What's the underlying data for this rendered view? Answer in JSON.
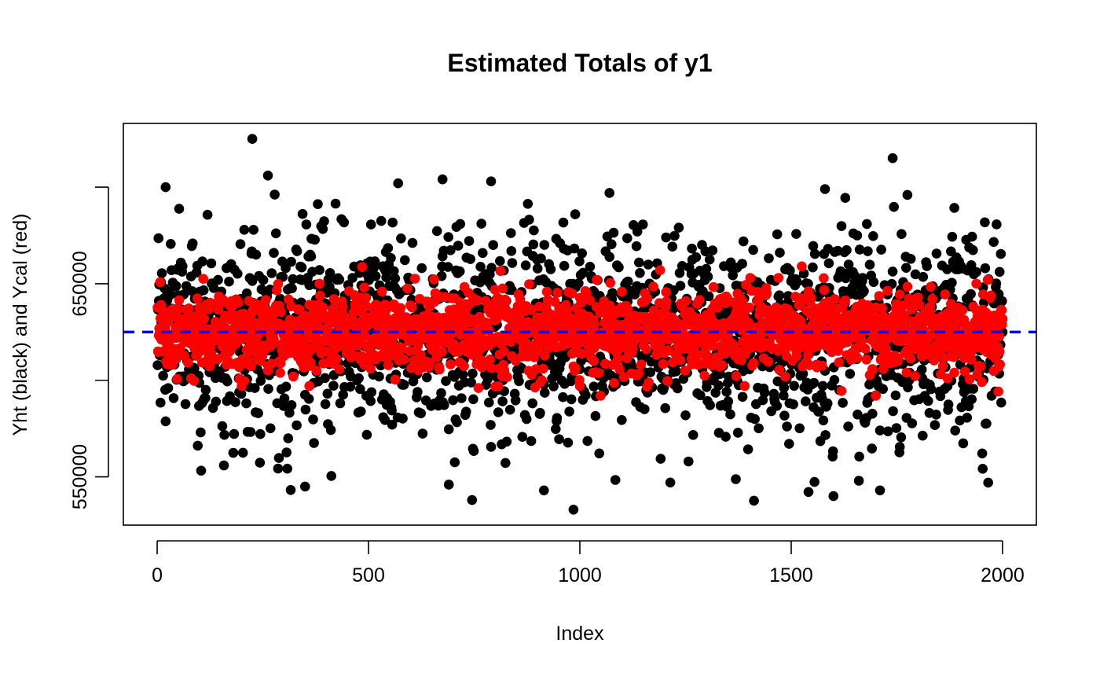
{
  "chart_data": {
    "type": "scatter",
    "title": "Estimated Totals of y1",
    "xlabel": "Index",
    "ylabel": "Yht (black) and Ycal (red)",
    "xlim": [
      -80,
      2080
    ],
    "ylim": [
      525000,
      733000
    ],
    "x_ticks": [
      0,
      500,
      1000,
      1500,
      2000
    ],
    "x_tick_labels": [
      "0",
      "500",
      "1000",
      "1500",
      "2000"
    ],
    "y_ticks": [
      550000,
      600000,
      650000,
      700000
    ],
    "y_tick_labels": [
      "550000",
      "",
      "650000",
      ""
    ],
    "n_points": 2000,
    "reference_line": {
      "y": 625000,
      "color": "#0000ff",
      "style": "dashed"
    },
    "series": [
      {
        "name": "Yht (black)",
        "color": "#000000",
        "mean": 625000,
        "spread_sd": 26000,
        "min": 533000,
        "max": 725000,
        "extremes": [
          {
            "x": 225,
            "y": 725000
          },
          {
            "x": 262,
            "y": 706000
          },
          {
            "x": 1740,
            "y": 715000
          },
          {
            "x": 20,
            "y": 700000
          },
          {
            "x": 570,
            "y": 702000
          },
          {
            "x": 675,
            "y": 704000
          },
          {
            "x": 790,
            "y": 703000
          },
          {
            "x": 1070,
            "y": 697000
          },
          {
            "x": 1580,
            "y": 699000
          },
          {
            "x": 1775,
            "y": 696000
          },
          {
            "x": 350,
            "y": 545000
          },
          {
            "x": 745,
            "y": 538000
          },
          {
            "x": 985,
            "y": 533000
          },
          {
            "x": 1600,
            "y": 540000
          },
          {
            "x": 1710,
            "y": 543000
          },
          {
            "x": 1660,
            "y": 548000
          },
          {
            "x": 915,
            "y": 543000
          },
          {
            "x": 690,
            "y": 546000
          }
        ]
      },
      {
        "name": "Ycal (red)",
        "color": "#ff0000",
        "mean": 625000,
        "spread_sd": 10000,
        "min": 592000,
        "max": 659000,
        "extremes": [
          {
            "x": 1525,
            "y": 659000
          },
          {
            "x": 1190,
            "y": 657000
          },
          {
            "x": 1040,
            "y": 652000
          },
          {
            "x": 1470,
            "y": 653000
          },
          {
            "x": 1965,
            "y": 652000
          },
          {
            "x": 490,
            "y": 648000
          },
          {
            "x": 1700,
            "y": 592000
          },
          {
            "x": 760,
            "y": 596000
          },
          {
            "x": 200,
            "y": 597000
          },
          {
            "x": 1000,
            "y": 597000
          },
          {
            "x": 360,
            "y": 597000
          },
          {
            "x": 80,
            "y": 601000
          },
          {
            "x": 910,
            "y": 600000
          },
          {
            "x": 1870,
            "y": 601000
          }
        ]
      }
    ]
  }
}
